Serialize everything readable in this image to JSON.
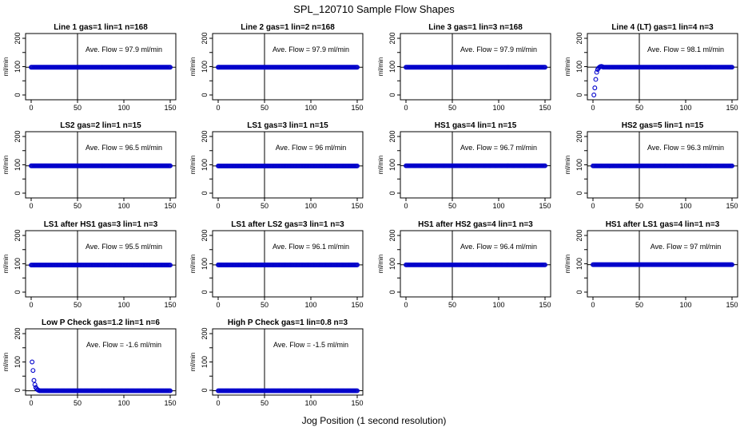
{
  "figure": {
    "title": "SPL_120710  Sample Flow Shapes",
    "xlabel": "Jog Position (1 second resolution)"
  },
  "colors": {
    "points": "#0000cc",
    "axis": "#000000",
    "flow_line": "#000000"
  },
  "chart_data": [
    {
      "type": "scatter",
      "title": "Line 1 gas=1 lin=1 n=168",
      "ylabel": "ml/min",
      "annotation": "Ave. Flow = 97.9  ml/min",
      "xlim": [
        0,
        150
      ],
      "ylim": [
        0,
        200
      ],
      "xticks": [
        0,
        50,
        100,
        150
      ],
      "yticks": [
        0,
        100,
        200
      ],
      "vline": 50,
      "hline": 97.9,
      "shape": "flat",
      "level": 97.9
    },
    {
      "type": "scatter",
      "title": "Line 2 gas=1 lin=2 n=168",
      "ylabel": "ml/min",
      "annotation": "Ave. Flow = 97.9  ml/min",
      "xlim": [
        0,
        150
      ],
      "ylim": [
        0,
        200
      ],
      "xticks": [
        0,
        50,
        100,
        150
      ],
      "yticks": [
        0,
        100,
        200
      ],
      "vline": 50,
      "hline": 97.9,
      "shape": "flat",
      "level": 97.9
    },
    {
      "type": "scatter",
      "title": "Line 3 gas=1 lin=3 n=168",
      "ylabel": "ml/min",
      "annotation": "Ave. Flow = 97.9  ml/min",
      "xlim": [
        0,
        150
      ],
      "ylim": [
        0,
        200
      ],
      "xticks": [
        0,
        50,
        100,
        150
      ],
      "yticks": [
        0,
        100,
        200
      ],
      "vline": 50,
      "hline": 97.9,
      "shape": "flat",
      "level": 97.9
    },
    {
      "type": "scatter",
      "title": "Line 4 (LT) gas=1 lin=4 n=3",
      "ylabel": "ml/min",
      "annotation": "Ave. Flow = 98.1  ml/min",
      "xlim": [
        0,
        150
      ],
      "ylim": [
        0,
        200
      ],
      "xticks": [
        0,
        50,
        100,
        150
      ],
      "yticks": [
        0,
        100,
        200
      ],
      "vline": 50,
      "hline": 98.1,
      "shape": "ramp_up",
      "level": 98.1,
      "early_points": [
        [
          1,
          0
        ],
        [
          2,
          25
        ],
        [
          3,
          55
        ],
        [
          4,
          80
        ],
        [
          5,
          90
        ],
        [
          6,
          95
        ],
        [
          7,
          98
        ],
        [
          8,
          100
        ],
        [
          9,
          101
        ],
        [
          10,
          100
        ]
      ]
    },
    {
      "type": "scatter",
      "title": "LS2 gas=2 lin=1 n=15",
      "ylabel": "ml/min",
      "annotation": "Ave. Flow = 96.5  ml/min",
      "xlim": [
        0,
        150
      ],
      "ylim": [
        0,
        200
      ],
      "xticks": [
        0,
        50,
        100,
        150
      ],
      "yticks": [
        0,
        100,
        200
      ],
      "vline": 50,
      "hline": 96.5,
      "shape": "flat",
      "level": 96.5
    },
    {
      "type": "scatter",
      "title": "LS1 gas=3 lin=1 n=15",
      "ylabel": "ml/min",
      "annotation": "Ave. Flow = 96  ml/min",
      "xlim": [
        0,
        150
      ],
      "ylim": [
        0,
        200
      ],
      "xticks": [
        0,
        50,
        100,
        150
      ],
      "yticks": [
        0,
        100,
        200
      ],
      "vline": 50,
      "hline": 96,
      "shape": "flat",
      "level": 96
    },
    {
      "type": "scatter",
      "title": "HS1 gas=4 lin=1 n=15",
      "ylabel": "ml/min",
      "annotation": "Ave. Flow = 96.7  ml/min",
      "xlim": [
        0,
        150
      ],
      "ylim": [
        0,
        200
      ],
      "xticks": [
        0,
        50,
        100,
        150
      ],
      "yticks": [
        0,
        100,
        200
      ],
      "vline": 50,
      "hline": 96.7,
      "shape": "flat",
      "level": 96.7
    },
    {
      "type": "scatter",
      "title": "HS2 gas=5 lin=1 n=15",
      "ylabel": "ml/min",
      "annotation": "Ave. Flow = 96.3  ml/min",
      "xlim": [
        0,
        150
      ],
      "ylim": [
        0,
        200
      ],
      "xticks": [
        0,
        50,
        100,
        150
      ],
      "yticks": [
        0,
        100,
        200
      ],
      "vline": 50,
      "hline": 96.3,
      "shape": "flat",
      "level": 96.3
    },
    {
      "type": "scatter",
      "title": "LS1 after HS1 gas=3 lin=1 n=3",
      "ylabel": "ml/min",
      "annotation": "Ave. Flow = 95.5  ml/min",
      "xlim": [
        0,
        150
      ],
      "ylim": [
        0,
        200
      ],
      "xticks": [
        0,
        50,
        100,
        150
      ],
      "yticks": [
        0,
        100,
        200
      ],
      "vline": 50,
      "hline": 95.5,
      "shape": "flat",
      "level": 95.5
    },
    {
      "type": "scatter",
      "title": "LS1 after LS2 gas=3 lin=1 n=3",
      "ylabel": "ml/min",
      "annotation": "Ave. Flow = 96.1  ml/min",
      "xlim": [
        0,
        150
      ],
      "ylim": [
        0,
        200
      ],
      "xticks": [
        0,
        50,
        100,
        150
      ],
      "yticks": [
        0,
        100,
        200
      ],
      "vline": 50,
      "hline": 96.1,
      "shape": "flat",
      "level": 96.1
    },
    {
      "type": "scatter",
      "title": "HS1 after HS2 gas=4 lin=1 n=3",
      "ylabel": "ml/min",
      "annotation": "Ave. Flow = 96.4  ml/min",
      "xlim": [
        0,
        150
      ],
      "ylim": [
        0,
        200
      ],
      "xticks": [
        0,
        50,
        100,
        150
      ],
      "yticks": [
        0,
        100,
        200
      ],
      "vline": 50,
      "hline": 96.4,
      "shape": "flat",
      "level": 96.4
    },
    {
      "type": "scatter",
      "title": "HS1 after LS1 gas=4 lin=1 n=3",
      "ylabel": "ml/min",
      "annotation": "Ave. Flow = 97  ml/min",
      "xlim": [
        0,
        150
      ],
      "ylim": [
        0,
        200
      ],
      "xticks": [
        0,
        50,
        100,
        150
      ],
      "yticks": [
        0,
        100,
        200
      ],
      "vline": 50,
      "hline": 97,
      "shape": "flat",
      "level": 97
    },
    {
      "type": "scatter",
      "title": "Low P Check gas=1.2 lin=1 n=6",
      "ylabel": "ml/min",
      "annotation": "Ave. Flow = -1.6  ml/min",
      "xlim": [
        0,
        150
      ],
      "ylim": [
        0,
        200
      ],
      "xticks": [
        0,
        50,
        100,
        150
      ],
      "yticks": [
        0,
        100,
        200
      ],
      "vline": 50,
      "hline": -1.6,
      "shape": "decay",
      "level": -1.6,
      "early_points": [
        [
          1,
          100
        ],
        [
          2,
          70
        ],
        [
          3,
          35
        ],
        [
          4,
          20
        ],
        [
          5,
          10
        ],
        [
          6,
          5
        ],
        [
          7,
          2
        ],
        [
          8,
          0
        ]
      ]
    },
    {
      "type": "scatter",
      "title": "High P Check gas=1 lin=0.8 n=3",
      "ylabel": "ml/min",
      "annotation": "Ave. Flow = -1.5  ml/min",
      "xlim": [
        0,
        150
      ],
      "ylim": [
        0,
        200
      ],
      "xticks": [
        0,
        50,
        100,
        150
      ],
      "yticks": [
        0,
        100,
        200
      ],
      "vline": 50,
      "hline": -1.5,
      "shape": "flat",
      "level": -1.5
    }
  ]
}
